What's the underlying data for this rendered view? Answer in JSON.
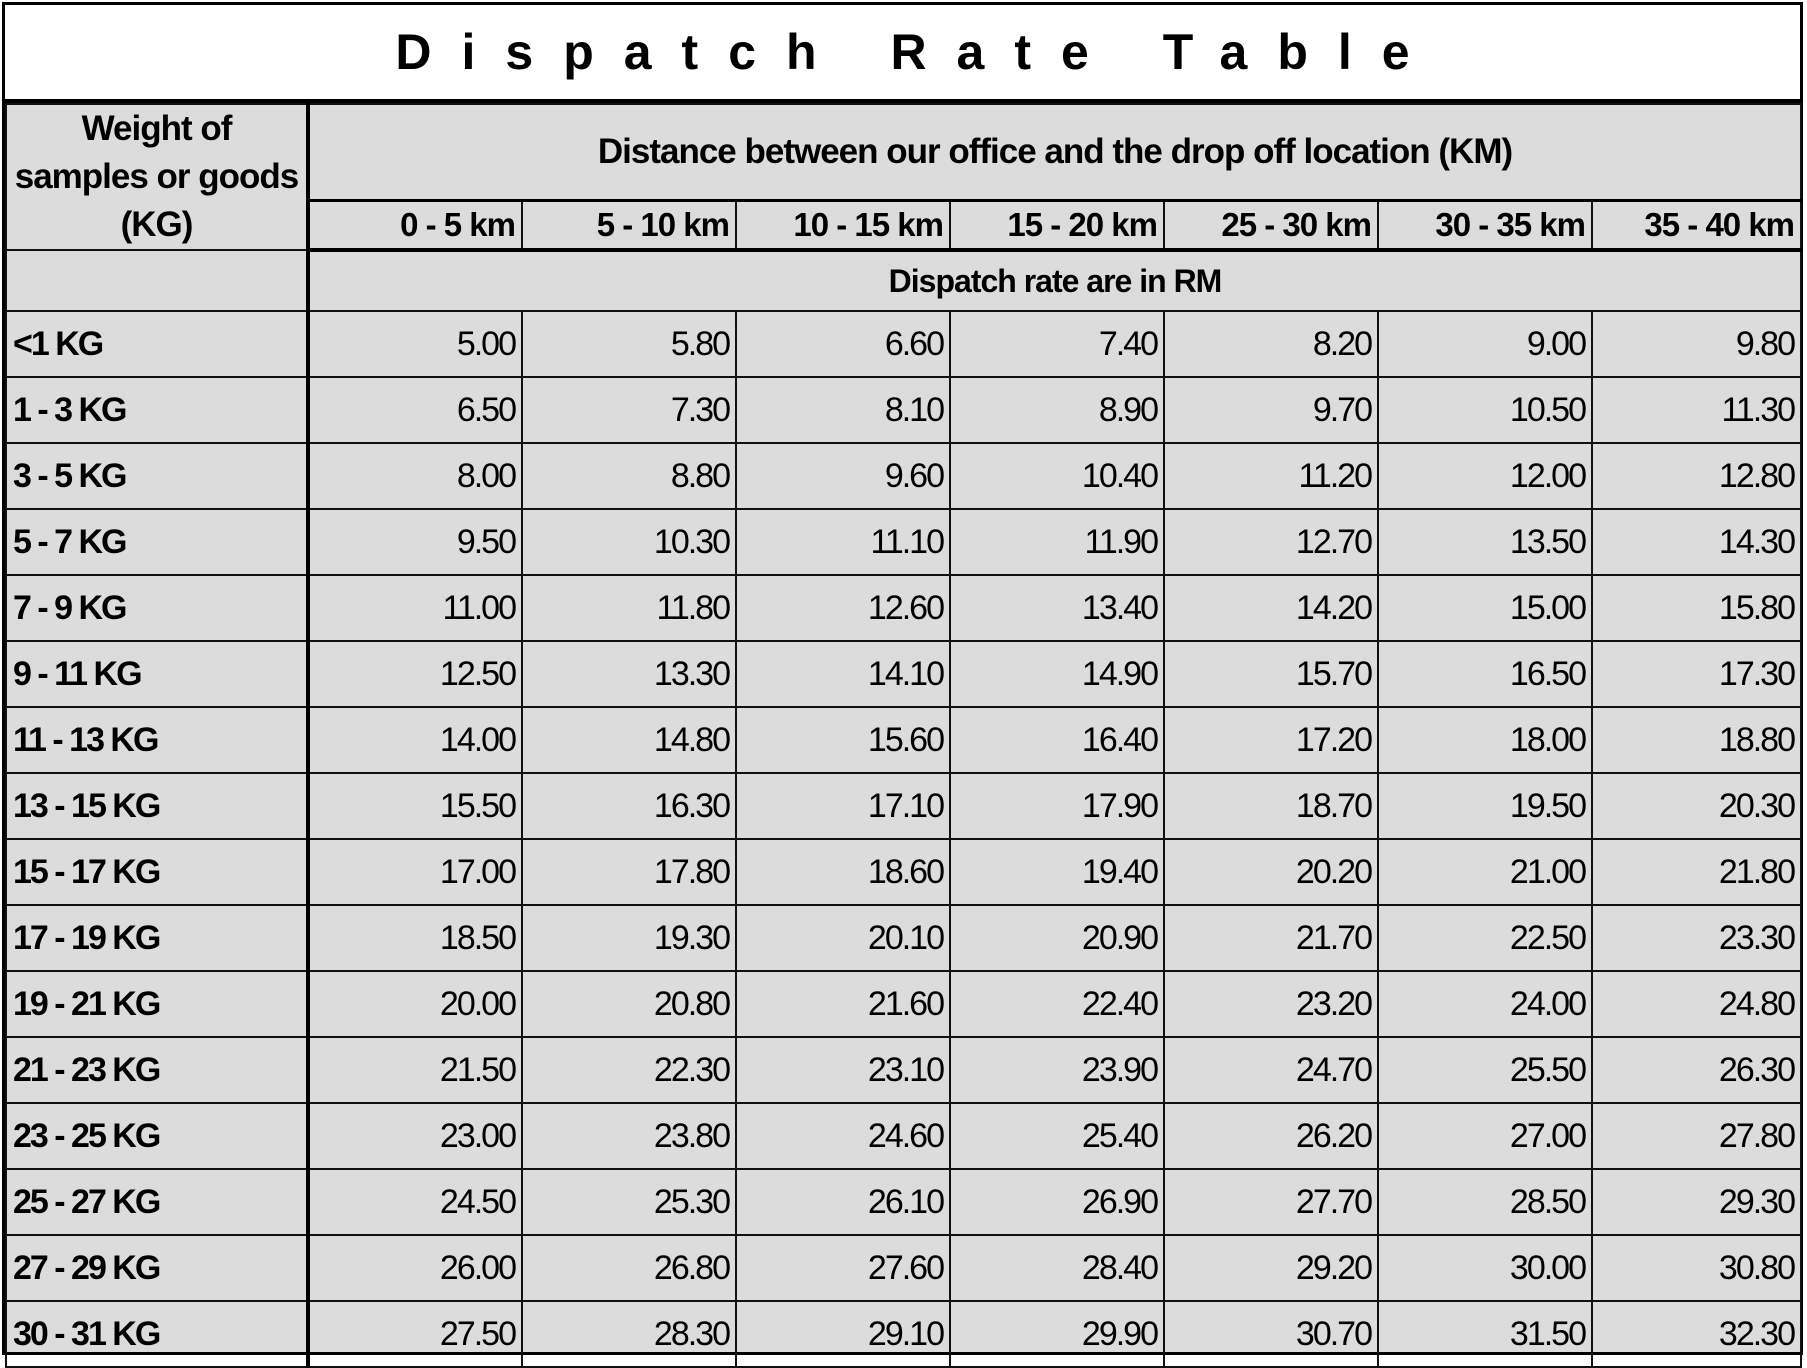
{
  "title": "Dispatch Rate Table",
  "header": {
    "weight_label": "Weight of samples or goods (KG)",
    "distance_label": "Distance between our office and the drop off location (KM)",
    "rate_label": "Dispatch rate  are in RM",
    "distance_columns": [
      "0 - 5 km",
      "5 - 10 km",
      "10 - 15 km",
      "15 - 20 km",
      "25 - 30 km",
      "30 - 35 km",
      "35 - 40 km"
    ]
  },
  "rows": [
    {
      "weight": "<1 KG",
      "rates": [
        "5.00",
        "5.80",
        "6.60",
        "7.40",
        "8.20",
        "9.00",
        "9.80"
      ]
    },
    {
      "weight": "1 - 3 KG",
      "rates": [
        "6.50",
        "7.30",
        "8.10",
        "8.90",
        "9.70",
        "10.50",
        "11.30"
      ]
    },
    {
      "weight": "3 - 5 KG",
      "rates": [
        "8.00",
        "8.80",
        "9.60",
        "10.40",
        "11.20",
        "12.00",
        "12.80"
      ]
    },
    {
      "weight": "5 - 7 KG",
      "rates": [
        "9.50",
        "10.30",
        "11.10",
        "11.90",
        "12.70",
        "13.50",
        "14.30"
      ]
    },
    {
      "weight": "7 - 9 KG",
      "rates": [
        "11.00",
        "11.80",
        "12.60",
        "13.40",
        "14.20",
        "15.00",
        "15.80"
      ]
    },
    {
      "weight": "9 - 11 KG",
      "rates": [
        "12.50",
        "13.30",
        "14.10",
        "14.90",
        "15.70",
        "16.50",
        "17.30"
      ]
    },
    {
      "weight": "11 - 13 KG",
      "rates": [
        "14.00",
        "14.80",
        "15.60",
        "16.40",
        "17.20",
        "18.00",
        "18.80"
      ]
    },
    {
      "weight": "13 - 15 KG",
      "rates": [
        "15.50",
        "16.30",
        "17.10",
        "17.90",
        "18.70",
        "19.50",
        "20.30"
      ]
    },
    {
      "weight": "15 - 17 KG",
      "rates": [
        "17.00",
        "17.80",
        "18.60",
        "19.40",
        "20.20",
        "21.00",
        "21.80"
      ]
    },
    {
      "weight": "17 - 19 KG",
      "rates": [
        "18.50",
        "19.30",
        "20.10",
        "20.90",
        "21.70",
        "22.50",
        "23.30"
      ]
    },
    {
      "weight": "19 - 21 KG",
      "rates": [
        "20.00",
        "20.80",
        "21.60",
        "22.40",
        "23.20",
        "24.00",
        "24.80"
      ]
    },
    {
      "weight": "21 - 23 KG",
      "rates": [
        "21.50",
        "22.30",
        "23.10",
        "23.90",
        "24.70",
        "25.50",
        "26.30"
      ]
    },
    {
      "weight": "23 - 25 KG",
      "rates": [
        "23.00",
        "23.80",
        "24.60",
        "25.40",
        "26.20",
        "27.00",
        "27.80"
      ]
    },
    {
      "weight": "25 - 27 KG",
      "rates": [
        "24.50",
        "25.30",
        "26.10",
        "26.90",
        "27.70",
        "28.50",
        "29.30"
      ]
    },
    {
      "weight": "27 - 29 KG",
      "rates": [
        "26.00",
        "26.80",
        "27.60",
        "28.40",
        "29.20",
        "30.00",
        "30.80"
      ]
    },
    {
      "weight": "30 - 31 KG",
      "rates": [
        "27.50",
        "28.30",
        "29.10",
        "29.90",
        "30.70",
        "31.50",
        "32.30"
      ]
    }
  ]
}
